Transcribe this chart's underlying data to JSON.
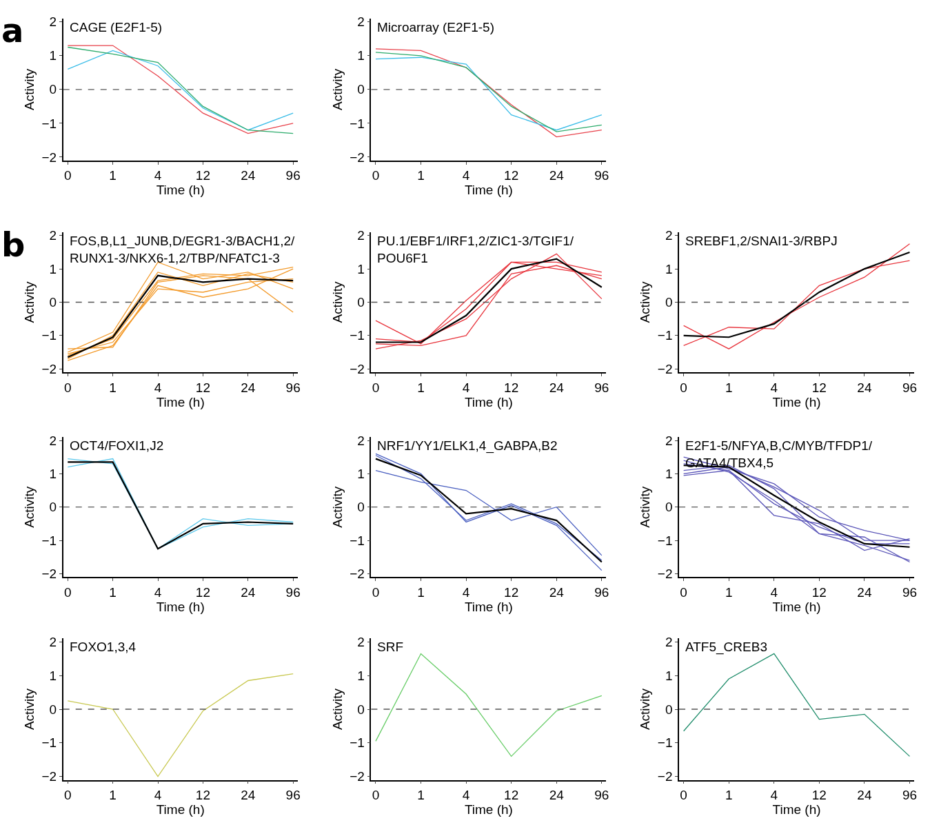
{
  "chart_data": [
    {
      "type": "line",
      "title": "CAGE (E2F1-5)",
      "annotations": [
        "a"
      ],
      "xlabel": "Time (h)",
      "ylabel": "Activity",
      "categories": [
        "0",
        "1",
        "4",
        "12",
        "24",
        "96"
      ],
      "ylim": [
        -2.1,
        2.1
      ],
      "yticks": [
        -2,
        -1,
        0,
        1,
        2
      ],
      "ref_lines": [
        {
          "axis": "y",
          "value": 0,
          "color": "#555555",
          "line_style": "dashed"
        }
      ],
      "series": [
        {
          "color": "#e8414a",
          "values": [
            1.3,
            1.3,
            0.4,
            -0.7,
            -1.3,
            -1.0
          ]
        },
        {
          "color": "#3bbde8",
          "values": [
            0.6,
            1.15,
            0.7,
            -0.55,
            -1.2,
            -0.7
          ]
        },
        {
          "color": "#2bab6b",
          "values": [
            1.25,
            1.05,
            0.8,
            -0.5,
            -1.2,
            -1.3
          ]
        }
      ]
    },
    {
      "type": "line",
      "title": "Microarray (E2F1-5)",
      "xlabel": "Time (h)",
      "ylabel": "Activity",
      "categories": [
        "0",
        "1",
        "4",
        "12",
        "24",
        "96"
      ],
      "ylim": [
        -2.1,
        2.1
      ],
      "yticks": [
        -2,
        -1,
        0,
        1,
        2
      ],
      "ref_lines": [
        {
          "axis": "y",
          "value": 0,
          "color": "#555555",
          "line_style": "dashed"
        }
      ],
      "series": [
        {
          "color": "#e8414a",
          "values": [
            1.2,
            1.15,
            0.65,
            -0.45,
            -1.4,
            -1.2
          ]
        },
        {
          "color": "#3bbde8",
          "values": [
            0.9,
            0.95,
            0.75,
            -0.75,
            -1.2,
            -0.75
          ]
        },
        {
          "color": "#2bab6b",
          "values": [
            1.1,
            1.0,
            0.65,
            -0.5,
            -1.25,
            -1.05
          ]
        }
      ]
    },
    {
      "type": "line",
      "title": "FOS,B,L1_JUNB,D/EGR1-3/BACH1,2/\nRUNX1-3/NKX6-1,2/TBP/NFATC1-3",
      "annotations": [
        "b"
      ],
      "xlabel": "Time (h)",
      "ylabel": "Activity",
      "categories": [
        "0",
        "1",
        "4",
        "12",
        "24",
        "96"
      ],
      "ylim": [
        -2.1,
        2.1
      ],
      "yticks": [
        -2,
        -1,
        0,
        1,
        2
      ],
      "ref_lines": [
        {
          "axis": "y",
          "value": 0,
          "color": "#555555",
          "line_style": "dashed"
        }
      ],
      "series": [
        {
          "color": "#f39a2a",
          "values": [
            -1.5,
            -0.9,
            1.2,
            0.7,
            0.9,
            0.4
          ]
        },
        {
          "color": "#f39a2a",
          "values": [
            -1.6,
            -1.1,
            0.65,
            0.85,
            0.8,
            1.05
          ]
        },
        {
          "color": "#f39a2a",
          "values": [
            -1.75,
            -1.3,
            0.5,
            0.15,
            0.4,
            1.0
          ]
        },
        {
          "color": "#f39a2a",
          "values": [
            -1.4,
            -1.35,
            0.6,
            0.8,
            0.7,
            -0.3
          ]
        },
        {
          "color": "#f39a2a",
          "values": [
            -1.7,
            -1.0,
            0.9,
            0.5,
            0.85,
            0.6
          ]
        },
        {
          "color": "#f39a2a",
          "values": [
            -1.55,
            -1.2,
            0.4,
            0.3,
            0.6,
            0.7
          ]
        },
        {
          "color": "#000000",
          "values": [
            -1.65,
            -1.05,
            0.8,
            0.6,
            0.7,
            0.65
          ]
        }
      ]
    },
    {
      "type": "line",
      "title": "PU.1/EBF1/IRF1,2/ZIC1-3/TGIF1/\nPOU6F1",
      "xlabel": "Time (h)",
      "ylabel": "Activity",
      "categories": [
        "0",
        "1",
        "4",
        "12",
        "24",
        "96"
      ],
      "ylim": [
        -2.1,
        2.1
      ],
      "yticks": [
        -2,
        -1,
        0,
        1,
        2
      ],
      "ref_lines": [
        {
          "axis": "y",
          "value": 0,
          "color": "#555555",
          "line_style": "dashed"
        }
      ],
      "series": [
        {
          "color": "#e8343c",
          "values": [
            -0.55,
            -1.25,
            0.05,
            1.2,
            1.2,
            0.9
          ]
        },
        {
          "color": "#e8343c",
          "values": [
            -1.4,
            -1.15,
            -0.5,
            0.7,
            1.45,
            0.1
          ]
        },
        {
          "color": "#e8343c",
          "values": [
            -1.25,
            -1.3,
            -1.0,
            0.85,
            1.1,
            0.7
          ]
        },
        {
          "color": "#e8343c",
          "values": [
            -1.1,
            -1.2,
            -0.2,
            1.2,
            1.0,
            0.8
          ]
        },
        {
          "color": "#000000",
          "values": [
            -1.2,
            -1.2,
            -0.4,
            1.0,
            1.3,
            0.45
          ]
        }
      ]
    },
    {
      "type": "line",
      "title": "SREBF1,2/SNAI1-3/RBPJ",
      "xlabel": "Time (h)",
      "ylabel": "Activity",
      "categories": [
        "0",
        "1",
        "4",
        "12",
        "24",
        "96"
      ],
      "ylim": [
        -2.1,
        2.1
      ],
      "yticks": [
        -2,
        -1,
        0,
        1,
        2
      ],
      "ref_lines": [
        {
          "axis": "y",
          "value": 0,
          "color": "#555555",
          "line_style": "dashed"
        }
      ],
      "series": [
        {
          "color": "#e8343c",
          "values": [
            -1.3,
            -0.75,
            -0.8,
            0.5,
            1.0,
            1.25
          ]
        },
        {
          "color": "#e8343c",
          "values": [
            -0.7,
            -1.4,
            -0.6,
            0.15,
            0.75,
            1.75
          ]
        },
        {
          "color": "#000000",
          "values": [
            -1.0,
            -1.05,
            -0.65,
            0.3,
            1.0,
            1.5
          ]
        }
      ]
    },
    {
      "type": "line",
      "title": "OCT4/FOXI1,J2",
      "xlabel": "Time (h)",
      "ylabel": "Activity",
      "categories": [
        "0",
        "1",
        "4",
        "12",
        "24",
        "96"
      ],
      "ylim": [
        -2.1,
        2.1
      ],
      "yticks": [
        -2,
        -1,
        0,
        1,
        2
      ],
      "ref_lines": [
        {
          "axis": "y",
          "value": 0,
          "color": "#555555",
          "line_style": "dashed"
        }
      ],
      "series": [
        {
          "color": "#5bc8ec",
          "values": [
            1.2,
            1.45,
            -1.25,
            -0.35,
            -0.55,
            -0.5
          ]
        },
        {
          "color": "#5bc8ec",
          "values": [
            1.45,
            1.3,
            -1.25,
            -0.6,
            -0.35,
            -0.45
          ]
        },
        {
          "color": "#000000",
          "values": [
            1.35,
            1.35,
            -1.25,
            -0.5,
            -0.45,
            -0.5
          ]
        }
      ]
    },
    {
      "type": "line",
      "title": "NRF1/YY1/ELK1,4_GABPA,B2",
      "xlabel": "Time (h)",
      "ylabel": "Activity",
      "categories": [
        "0",
        "1",
        "4",
        "12",
        "24",
        "96"
      ],
      "ylim": [
        -2.1,
        2.1
      ],
      "yticks": [
        -2,
        -1,
        0,
        1,
        2
      ],
      "ref_lines": [
        {
          "axis": "y",
          "value": 0,
          "color": "#555555",
          "line_style": "dashed"
        }
      ],
      "series": [
        {
          "color": "#4a5fc0",
          "values": [
            1.6,
            1.0,
            -0.45,
            0.05,
            -0.55,
            -1.9
          ]
        },
        {
          "color": "#4a5fc0",
          "values": [
            1.1,
            0.75,
            0.5,
            -0.4,
            0.0,
            -1.45
          ]
        },
        {
          "color": "#4a5fc0",
          "values": [
            1.55,
            0.85,
            -0.4,
            0.1,
            -0.5,
            -1.6
          ]
        },
        {
          "color": "#000000",
          "values": [
            1.45,
            0.95,
            -0.2,
            -0.05,
            -0.4,
            -1.65
          ]
        }
      ]
    },
    {
      "type": "line",
      "title": "E2F1-5/NFYA,B,C/MYB/TFDP1/\nGATA4/TBX4,5",
      "xlabel": "Time (h)",
      "ylabel": "Activity",
      "categories": [
        "0",
        "1",
        "4",
        "12",
        "24",
        "96"
      ],
      "ylim": [
        -2.1,
        2.1
      ],
      "yticks": [
        -2,
        -1,
        0,
        1,
        2
      ],
      "ref_lines": [
        {
          "axis": "y",
          "value": 0,
          "color": "#555555",
          "line_style": "dashed"
        }
      ],
      "series": [
        {
          "color": "#5a55b8",
          "values": [
            1.5,
            1.15,
            0.7,
            -0.3,
            -0.7,
            -1.0
          ]
        },
        {
          "color": "#5a55b8",
          "values": [
            0.95,
            1.1,
            -0.25,
            -0.5,
            -1.3,
            -0.95
          ]
        },
        {
          "color": "#5a55b8",
          "values": [
            1.1,
            1.25,
            0.55,
            -0.8,
            -0.9,
            -1.65
          ]
        },
        {
          "color": "#5a55b8",
          "values": [
            1.4,
            1.05,
            0.2,
            -0.8,
            -1.15,
            -1.6
          ]
        },
        {
          "color": "#5a55b8",
          "values": [
            1.0,
            1.2,
            0.6,
            -0.1,
            -1.0,
            -1.0
          ]
        },
        {
          "color": "#5a55b8",
          "values": [
            1.3,
            1.1,
            0.1,
            -0.6,
            -1.1,
            -1.1
          ]
        },
        {
          "color": "#000000",
          "values": [
            1.25,
            1.2,
            0.35,
            -0.45,
            -1.1,
            -1.2
          ]
        }
      ]
    },
    {
      "type": "line",
      "title": "FOXO1,3,4",
      "xlabel": "Time (h)",
      "ylabel": "Activity",
      "categories": [
        "0",
        "1",
        "4",
        "12",
        "24",
        "96"
      ],
      "ylim": [
        -2.1,
        2.1
      ],
      "yticks": [
        -2,
        -1,
        0,
        1,
        2
      ],
      "ref_lines": [
        {
          "axis": "y",
          "value": 0,
          "color": "#555555",
          "line_style": "dashed"
        }
      ],
      "series": [
        {
          "color": "#c8c850",
          "values": [
            0.25,
            0.0,
            -2.0,
            -0.05,
            0.85,
            1.05
          ]
        }
      ]
    },
    {
      "type": "line",
      "title": "SRF",
      "xlabel": "Time (h)",
      "ylabel": "Activity",
      "categories": [
        "0",
        "1",
        "4",
        "12",
        "24",
        "96"
      ],
      "ylim": [
        -2.1,
        2.1
      ],
      "yticks": [
        -2,
        -1,
        0,
        1,
        2
      ],
      "ref_lines": [
        {
          "axis": "y",
          "value": 0,
          "color": "#555555",
          "line_style": "dashed"
        }
      ],
      "series": [
        {
          "color": "#66cc66",
          "values": [
            -0.95,
            1.65,
            0.45,
            -1.4,
            -0.05,
            0.4
          ]
        }
      ]
    },
    {
      "type": "line",
      "title": "ATF5_CREB3",
      "xlabel": "Time (h)",
      "ylabel": "Activity",
      "categories": [
        "0",
        "1",
        "4",
        "12",
        "24",
        "96"
      ],
      "ylim": [
        -2.1,
        2.1
      ],
      "yticks": [
        -2,
        -1,
        0,
        1,
        2
      ],
      "ref_lines": [
        {
          "axis": "y",
          "value": 0,
          "color": "#555555",
          "line_style": "dashed"
        }
      ],
      "series": [
        {
          "color": "#1e8c6a",
          "values": [
            -0.65,
            0.9,
            1.65,
            -0.3,
            -0.15,
            -1.4
          ]
        }
      ]
    }
  ]
}
